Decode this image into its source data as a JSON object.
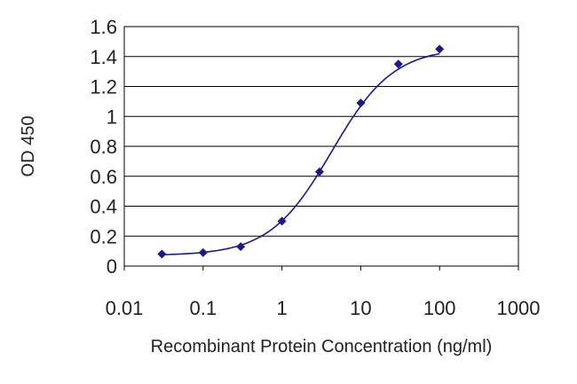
{
  "chart_data": {
    "type": "scatter",
    "title": "",
    "xlabel": "Recombinant Protein Concentration (ng/ml)",
    "ylabel": "OD 450",
    "xscale": "log",
    "xlim": [
      0.01,
      1000
    ],
    "ylim": [
      0,
      1.6
    ],
    "x_ticks": [
      "0.01",
      "0.1",
      "1",
      "10",
      "100",
      "1000"
    ],
    "y_ticks": [
      "0",
      "0.2",
      "0.4",
      "0.6",
      "0.8",
      "1",
      "1.2",
      "1.4",
      "1.6"
    ],
    "grid": "horizontal",
    "legend": "none",
    "series": [
      {
        "x": [
          0.03,
          0.1,
          0.3,
          1,
          3,
          10,
          30,
          100
        ],
        "y": [
          0.08,
          0.09,
          0.13,
          0.3,
          0.63,
          1.09,
          1.35,
          1.45
        ],
        "fit": "sigmoid",
        "color": "#1a1a8c"
      }
    ]
  }
}
